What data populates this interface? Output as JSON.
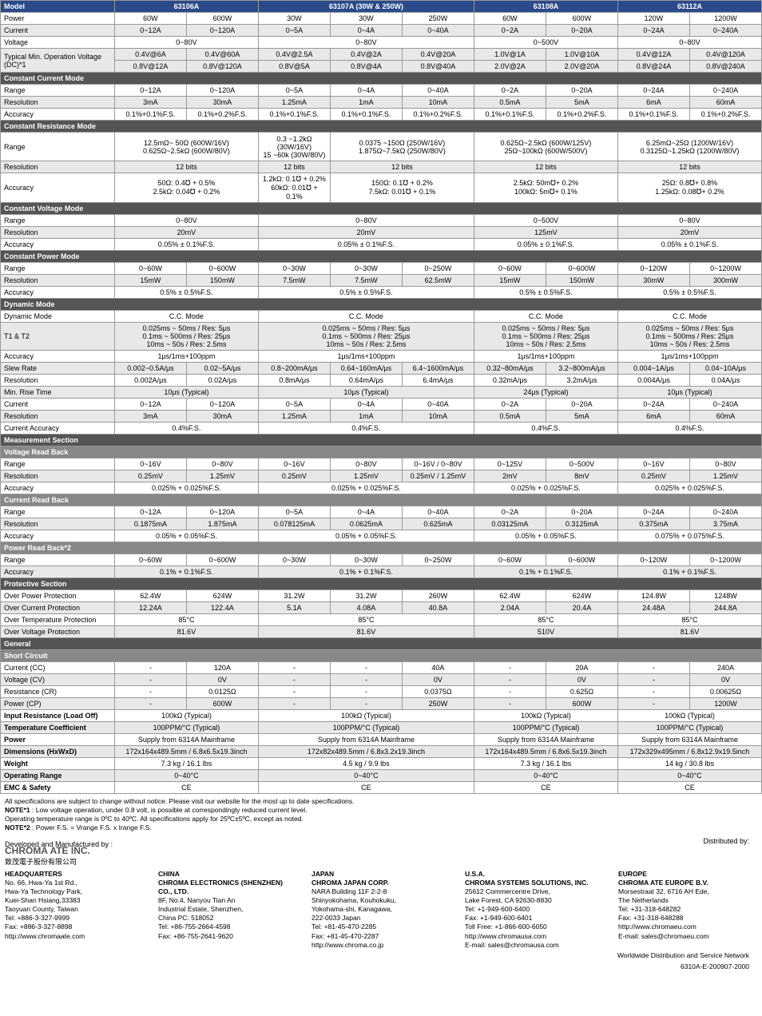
{
  "colors": {
    "header_blue": "#2a4a8a",
    "section_grey": "#555555",
    "row_alt": "#e8e8e8",
    "border": "#999999"
  },
  "models": [
    "63106A",
    "63107A (30W & 250W)",
    "63108A",
    "63112A"
  ],
  "sections": [
    {
      "type": "model-header"
    },
    {
      "label": "Power",
      "cells": [
        "60W",
        "600W",
        "30W",
        "30W",
        "250W",
        "60W",
        "600W",
        "120W",
        "1200W"
      ]
    },
    {
      "label": "Current",
      "alt": true,
      "cells": [
        "0~12A",
        "0~120A",
        "0~5A",
        "0~4A",
        "0~40A",
        "0~2A",
        "0~20A",
        "0~24A",
        "0~240A"
      ]
    },
    {
      "label": "Voltage",
      "cells_merged": [
        "0~80V",
        "0~80V",
        "0~500V",
        "0~80V"
      ]
    },
    {
      "label": "Typical Min. Operation Voltage (DC)*1",
      "rows2": [
        [
          "0.4V@6A",
          "0.4V@60A",
          "0.4V@2.5A",
          "0.4V@2A",
          "0.4V@20A",
          "1.0V@1A",
          "1.0V@10A",
          "0.4V@12A",
          "0.4V@120A"
        ],
        [
          "0.8V@12A",
          "0.8V@120A",
          "0.8V@5A",
          "0.8V@4A",
          "0.8V@40A",
          "2.0V@2A",
          "2.0V@20A",
          "0.8V@24A",
          "0.8V@240A"
        ]
      ],
      "alt": true
    },
    {
      "section": "Constant Current Mode"
    },
    {
      "label": "Range",
      "cells": [
        "0~12A",
        "0~120A",
        "0~5A",
        "0~4A",
        "0~40A",
        "0~2A",
        "0~20A",
        "0~24A",
        "0~240A"
      ]
    },
    {
      "label": "Resolution",
      "alt": true,
      "cells": [
        "3mA",
        "30mA",
        "1.25mA",
        "1mA",
        "10mA",
        "0.5mA",
        "5mA",
        "6mA",
        "60mA"
      ]
    },
    {
      "label": "Accuracy",
      "cells": [
        "0.1%+0.1%F.S.",
        "0.1%+0.2%F.S.",
        "0.1%+0.1%F.S.",
        "0.1%+0.1%F.S.",
        "0.1%+0.2%F.S.",
        "0.1%+0.1%F.S.",
        "0.1%+0.2%F.S.",
        "0.1%+0.1%F.S.",
        "0.1%+0.2%F.S."
      ]
    },
    {
      "section": "Constant Resistance Mode"
    },
    {
      "label": "Range",
      "cells_merged": [
        "12.5mΩ~ 50Ω (600W/16V)\n0.625Ω~2.5kΩ (600W/80V)",
        "0.3 ~1.2kΩ (30W/16V)\n15 ~60k (30W/80V)",
        "0.0375 ~150Ω (250W/16V)\n1.875Ω~7.5kΩ (250W/80V)",
        "0.625Ω~2.5kΩ (600W/125V)\n25Ω~100kΩ (600W/500V)",
        "6.25mΩ~25Ω (1200W/16V)\n0.3125Ω~1.25kΩ (1200W/80V)"
      ],
      "cols": [
        2,
        1,
        2,
        2,
        2
      ],
      "tall": true
    },
    {
      "label": "Resolution",
      "alt": true,
      "cells_merged": [
        "12 bits",
        "12 bits",
        "12 bits",
        "12 bits",
        "12 bits"
      ],
      "cols": [
        2,
        1,
        2,
        2,
        2
      ]
    },
    {
      "label": "Accuracy",
      "cells_merged": [
        "50Ω: 0.4℧ + 0.5%\n2.5kΩ: 0.04℧ + 0.2%",
        "1.2kΩ: 0.1℧ + 0.2%\n60kΩ: 0.01℧ + 0.1%",
        "150Ω: 0.1℧ + 0.2%\n7.5kΩ: 0.01℧ + 0.1%",
        "2.5kΩ: 50m℧+ 0.2%\n100kΩ: 5m℧+ 0.1%",
        "25Ω: 0.8℧+ 0.8%\n1.25kΩ: 0.08℧+ 0.2%"
      ],
      "cols": [
        2,
        1,
        2,
        2,
        2
      ]
    },
    {
      "section": "Constant Voltage Mode"
    },
    {
      "label": "Range",
      "cells_merged": [
        "0~80V",
        "0~80V",
        "0~500V",
        "0~80V"
      ]
    },
    {
      "label": "Resolution",
      "alt": true,
      "cells_merged": [
        "20mV",
        "20mV",
        "125mV",
        "20mV"
      ]
    },
    {
      "label": "Accuracy",
      "cells_merged": [
        "0.05% ± 0.1%F.S.",
        "0.05% ± 0.1%F.S.",
        "0.05% ± 0.1%F.S.",
        "0.05% ± 0.1%F.S."
      ]
    },
    {
      "section": "Constant Power Mode"
    },
    {
      "label": "Range",
      "cells": [
        "0~60W",
        "0~600W",
        "0~30W",
        "0~30W",
        "0~250W",
        "0~60W",
        "0~600W",
        "0~120W",
        "0~1200W"
      ]
    },
    {
      "label": "Resolution",
      "alt": true,
      "cells": [
        "15mW",
        "150mW",
        "7.5mW",
        "7.5mW",
        "62.5mW",
        "15mW",
        "150mW",
        "30mW",
        "300mW"
      ]
    },
    {
      "label": "Accuracy",
      "cells_merged": [
        "0.5% ± 0.5%F.S.",
        "0.5% ± 0.5%F.S.",
        "0.5% ± 0.5%F.S.",
        "0.5% ± 0.5%F.S."
      ]
    },
    {
      "section": "Dynamic Mode"
    },
    {
      "label": "Dynamic Mode",
      "cells_merged": [
        "C.C. Mode",
        "C.C. Mode",
        "C.C. Mode",
        "C.C. Mode"
      ]
    },
    {
      "label": "T1 & T2",
      "alt": true,
      "cells_merged": [
        "0.025ms ~ 50ms / Res: 5μs\n0.1ms ~ 500ms / Res: 25μs\n10ms ~ 50s / Res: 2.5ms",
        "0.025ms ~ 50ms / Res: 5μs\n0.1ms ~ 500ms / Res: 25μs\n10ms ~ 50s / Res: 2.5ms",
        "0.025ms ~ 50ms / Res: 5μs\n0.1ms ~ 500ms / Res: 25μs\n10ms ~ 50s / Res: 2.5ms",
        "0.025ms ~ 50ms / Res: 5μs\n0.1ms ~ 500ms / Res: 25μs\n10ms ~ 50s / Res: 2.5ms"
      ]
    },
    {
      "label": "Accuracy",
      "cells_merged": [
        "1μs/1ms+100ppm",
        "1μs/1ms+100ppm",
        "1μs/1ms+100ppm",
        "1μs/1ms+100ppm"
      ]
    },
    {
      "label": "Slew Rate",
      "alt": true,
      "cells": [
        "0.002~0.5A/μs",
        "0.02~5A/μs",
        "0.8~200mA/μs",
        "0.64~160mA/μs",
        "6.4~1600mA/μs",
        "0.32~80mA/μs",
        "3.2~800mA/μs",
        "0.004~1A/μs",
        "0.04~10A/μs"
      ]
    },
    {
      "label": "Resolution",
      "cells": [
        "0.002A/μs",
        "0.02A/μs",
        "0.8mA/μs",
        "0.64mA/μs",
        "6.4mA/μs",
        "0.32mA/μs",
        "3.2mA/μs",
        "0.004A/μs",
        "0.04A/μs"
      ]
    },
    {
      "label": "Min. Rise Time",
      "alt": true,
      "cells_merged": [
        "10μs (Typical)",
        "10μs (Typical)",
        "24μs (Typical)",
        "10μs (Typical)"
      ]
    },
    {
      "label": "Current",
      "cells": [
        "0~12A",
        "0~120A",
        "0~5A",
        "0~4A",
        "0~40A",
        "0~2A",
        "0~20A",
        "0~24A",
        "0~240A"
      ]
    },
    {
      "label": "Resolution",
      "alt": true,
      "cells": [
        "3mA",
        "30mA",
        "1.25mA",
        "1mA",
        "10mA",
        "0.5mA",
        "5mA",
        "6mA",
        "60mA"
      ]
    },
    {
      "label": "Current Accuracy",
      "cells_merged": [
        "0.4%F.S.",
        "0.4%F.S.",
        "0.4%F.S.",
        "0.4%F.S."
      ]
    },
    {
      "section": "Measurement Section"
    },
    {
      "section": "Voltage Read Back",
      "light": true
    },
    {
      "label": "Range",
      "cells": [
        "0~16V",
        "0~80V",
        "0~16V",
        "0~80V",
        "0~16V",
        "0~80V",
        "0~125V",
        "0~500V",
        "0~16V",
        "0~80V"
      ],
      "wide": true
    },
    {
      "label": "Resolution",
      "alt": true,
      "cells": [
        "0.25mV",
        "1.25mV",
        "0.25mV",
        "1.25mV",
        "0.25mV",
        "1.25mV",
        "2mV",
        "8mV",
        "0.25mV",
        "1.25mV"
      ],
      "wide": true
    },
    {
      "label": "Accuracy",
      "cells_merged": [
        "0.025% + 0.025%F.S.",
        "0.025% + 0.025%F.S.",
        "0.025% + 0.025%F.S.",
        "0.025% + 0.025%F.S."
      ]
    },
    {
      "section": "Current Read Back",
      "light": true
    },
    {
      "label": "Range",
      "cells": [
        "0~12A",
        "0~120A",
        "0~5A",
        "0~4A",
        "0~40A",
        "0~2A",
        "0~20A",
        "0~24A",
        "0~240A"
      ]
    },
    {
      "label": "Resolution",
      "alt": true,
      "cells": [
        "0.1875mA",
        "1.875mA",
        "0.078125mA",
        "0.0625mA",
        "0.625mA",
        "0.03125mA",
        "0.3125mA",
        "0.375mA",
        "3.75mA"
      ]
    },
    {
      "label": "Accuracy",
      "cells_merged": [
        "0.05% + 0.05%F.S.",
        "0.05% + 0.05%F.S.",
        "0.05% + 0.05%F.S.",
        "0.075% + 0.075%F.S."
      ]
    },
    {
      "section": "Power Read Back*2",
      "light": true
    },
    {
      "label": "Range",
      "cells": [
        "0~60W",
        "0~600W",
        "0~30W",
        "0~30W",
        "0~250W",
        "0~60W",
        "0~600W",
        "0~120W",
        "0~1200W"
      ]
    },
    {
      "label": "Accuracy",
      "alt": true,
      "cells_merged": [
        "0.1% + 0.1%F.S.",
        "0.1% + 0.1%F.S.",
        "0.1% + 0.1%F.S.",
        "0.1% + 0.1%F.S."
      ]
    },
    {
      "section": "Protective Section"
    },
    {
      "label": "Over Power Protection",
      "cells": [
        "62.4W",
        "624W",
        "31.2W",
        "31.2W",
        "260W",
        "62.4W",
        "624W",
        "124.8W",
        "1248W"
      ]
    },
    {
      "label": "Over Current Protection",
      "alt": true,
      "cells": [
        "12.24A",
        "122.4A",
        "5.1A",
        "4.08A",
        "40.8A",
        "2.04A",
        "20.4A",
        "24.48A",
        "244.8A"
      ]
    },
    {
      "label": "Over Temperature Protection",
      "cells_merged": [
        "85°C",
        "85°C",
        "85°C",
        "85°C"
      ]
    },
    {
      "label": "Over Voltage Protection",
      "alt": true,
      "cells_merged": [
        "81.6V",
        "81.6V",
        "510V",
        "81.6V"
      ]
    },
    {
      "section": "General"
    },
    {
      "section": "Short Circuit",
      "light": true
    },
    {
      "label": "Current (CC)",
      "cells": [
        "-",
        "120A",
        "-",
        "-",
        "40A",
        "-",
        "20A",
        "-",
        "240A"
      ]
    },
    {
      "label": "Voltage (CV)",
      "alt": true,
      "cells": [
        "-",
        "0V",
        "-",
        "-",
        "0V",
        "-",
        "0V",
        "-",
        "0V"
      ]
    },
    {
      "label": "Resistance (CR)",
      "cells": [
        "-",
        "0.0125Ω",
        "-",
        "-",
        "0.0375Ω",
        "-",
        "0.625Ω",
        "-",
        "0.00625Ω"
      ]
    },
    {
      "label": "Power (CP)",
      "alt": true,
      "cells": [
        "-",
        "600W",
        "-",
        "-",
        "250W",
        "-",
        "600W",
        "-",
        "1200W"
      ]
    },
    {
      "label": "Input Resistance (Load Off)",
      "cells_merged": [
        "100kΩ (Typical)",
        "100kΩ (Typical)",
        "100kΩ (Typical)",
        "100kΩ (Typical)"
      ],
      "bold": true
    },
    {
      "label": "Temperature Coefficient",
      "bold": true,
      "alt": true,
      "cells_merged": [
        "100PPM/°C (Typical)",
        "100PPM/°C (Typical)",
        "100PPM/°C (Typical)",
        "100PPM/°C (Typical)"
      ]
    },
    {
      "label": "Power",
      "bold": true,
      "cells_merged": [
        "Supply from 6314A Mainframe",
        "Supply from 6314A Mainframe",
        "Supply from 6314A Mainframe",
        "Supply from 6314A Mainframe"
      ]
    },
    {
      "label": "Dimensions (HxWxD)",
      "bold": true,
      "alt": true,
      "cells_merged": [
        "172x164x489.5mm / 6.8x6.5x19.3inch",
        "172x82x489.5mm / 6.8x3.2x19.3inch",
        "172x164x489.5mm / 6.8x6.5x19.3inch",
        "172x329x495mm / 6.8x12.9x19.5inch"
      ]
    },
    {
      "label": "Weight",
      "bold": true,
      "cells_merged": [
        "7.3 kg / 16.1 lbs",
        "4.5 kg / 9.9 lbs",
        "7.3 kg / 16.1 lbs",
        "14 kg / 30.8 lbs"
      ]
    },
    {
      "label": "Operating Range",
      "bold": true,
      "alt": true,
      "cells_merged": [
        "0~40°C",
        "0~40°C",
        "0~40°C",
        "0~40°C"
      ]
    },
    {
      "label": "EMC & Safety",
      "bold": true,
      "cells_merged": [
        "CE",
        "CE",
        "CE",
        "CE"
      ]
    }
  ],
  "footnotes": [
    "All specifications are subject to change without notice. Please visit our website for the most up to date specifications.",
    "NOTE*1 : Low voltage operation, under 0.8 volt, is possible at correspondingly reduced current level.",
    "            Operating temperature range is 0ºC to 40ºC. All specifications apply for 25ºC±5ºC, except as noted.",
    "NOTE*2 : Power F.S. = Vrange F.S. x Irange F.S."
  ],
  "footer": {
    "dev_by": "Developed and Manufactured by :",
    "company": "CHROMA ATE INC.",
    "company_cn": "致茂電子股份有限公司",
    "dist_by": "Distributed by:",
    "offices": [
      {
        "title": "HEADQUARTERS",
        "lines": [
          "No. 66, Hwa-Ya 1st Rd.,",
          "Hwa-Ya Technology Park,",
          "Kuei-Shan Hsiang,33383",
          "Taoyuan County, Taiwan",
          "Tel: +886-3-327-9999",
          "Fax: +886-3-327-8898",
          "http://www.chromaate.com"
        ]
      },
      {
        "title": "CHINA",
        "sub": "CHROMA ELECTRONICS (SHENZHEN) CO., LTD.",
        "lines": [
          "8F, No.4, Nanyou Tian An",
          "Industrial Estate, Shenzhen,",
          "China PC: 518052",
          "Tel: +86-755-2664-4598",
          "Fax: +86-755-2641-9620"
        ]
      },
      {
        "title": "JAPAN",
        "sub": "CHROMA JAPAN CORP.",
        "lines": [
          "NARA Building 11F 2-2-8",
          "Shinyokohama, Kouhokuku,",
          "Yokohama-shi, Kanagawa,",
          "222-0033 Japan",
          "Tel: +81-45-470-2285",
          "Fax: +81-45-470-2287",
          "http://www.chroma.co.jp"
        ]
      },
      {
        "title": "U.S.A.",
        "sub": "CHROMA SYSTEMS SOLUTIONS, INC.",
        "lines": [
          "25612 Commercentre Drive,",
          "Lake Forest, CA 92630-8830",
          "Tel: +1-949-600-6400",
          "Fax: +1-949-600-6401",
          "Toll Free: +1-866-600-6050",
          "http://www.chromausa.com",
          "E-mail: sales@chromausa.com"
        ]
      },
      {
        "title": "EUROPE",
        "sub": "CHROMA ATE EUROPE B.V.",
        "lines": [
          "Morsestraat 32, 6716 AH Ede,",
          "The Netherlands",
          "Tel: +31-318-648282",
          "Fax: +31-318-648288",
          "http://www.chromaeu.com",
          "E-mail: sales@chromaeu.com"
        ]
      }
    ],
    "tail1": "Worldwide Distribution and Service Network",
    "tail2": "6310A-E-200907-2000"
  }
}
